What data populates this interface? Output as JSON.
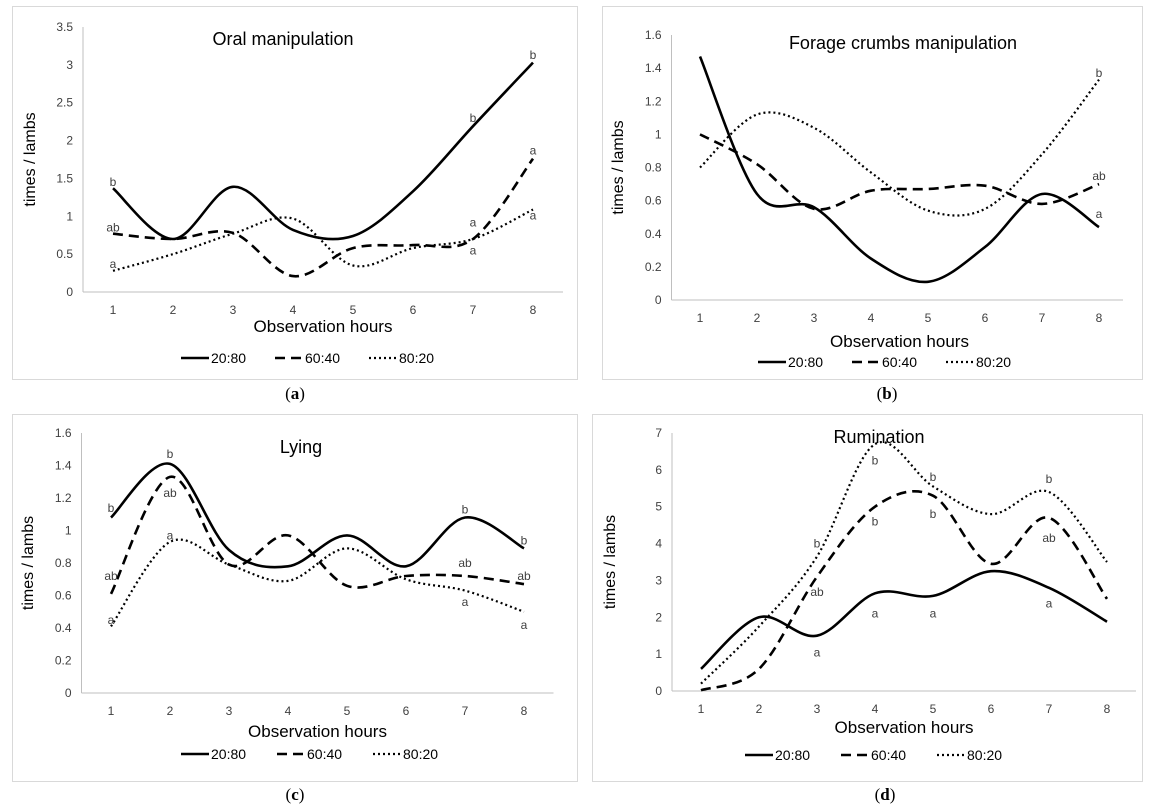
{
  "chart_data": [
    {
      "type": "line",
      "caption_letter": "a",
      "title": "Oral manipulation",
      "xlabel": "Observation hours",
      "ylabel": "times / lambs",
      "x": [
        1,
        2,
        3,
        4,
        5,
        6,
        7,
        8
      ],
      "ylim": [
        0,
        3.5
      ],
      "yticks": [
        "0",
        "0.5",
        "1",
        "1.5",
        "2",
        "2.5",
        "3",
        "3.5"
      ],
      "ytick_values": [
        0,
        0.5,
        1,
        1.5,
        2,
        2.5,
        3,
        3.5
      ],
      "legend_position": "bottom",
      "grid": false,
      "series": [
        {
          "name": "20:80",
          "style": "solid",
          "values": [
            1.37,
            0.7,
            1.39,
            0.82,
            0.74,
            1.33,
            2.19,
            3.03
          ]
        },
        {
          "name": "60:40",
          "style": "dashed",
          "values": [
            0.77,
            0.7,
            0.78,
            0.21,
            0.58,
            0.62,
            0.7,
            1.76
          ]
        },
        {
          "name": "80:20",
          "style": "dotted",
          "values": [
            0.28,
            0.5,
            0.77,
            0.97,
            0.35,
            0.58,
            0.7,
            1.09
          ]
        }
      ],
      "annotations": [
        {
          "text": "b",
          "x": 1,
          "y": 1.45
        },
        {
          "text": "ab",
          "x": 1,
          "y": 0.85
        },
        {
          "text": "a",
          "x": 1,
          "y": 0.37
        },
        {
          "text": "b",
          "x": 7,
          "y": 2.3
        },
        {
          "text": "a",
          "x": 7,
          "y": 0.92
        },
        {
          "text": "a",
          "x": 7,
          "y": 0.55
        },
        {
          "text": "b",
          "x": 8,
          "y": 3.13
        },
        {
          "text": "a",
          "x": 8,
          "y": 1.87
        },
        {
          "text": "a",
          "x": 8,
          "y": 1.01
        }
      ]
    },
    {
      "type": "line",
      "caption_letter": "b",
      "title": "Forage crumbs manipulation",
      "xlabel": "Observation hours",
      "ylabel": "times / lambs",
      "x": [
        1,
        2,
        3,
        4,
        5,
        6,
        7,
        8
      ],
      "ylim": [
        0,
        1.6
      ],
      "yticks": [
        "0",
        "0.2",
        "0.4",
        "0.6",
        "0.8",
        "1",
        "1.2",
        "1.4",
        "1.6"
      ],
      "ytick_values": [
        0,
        0.2,
        0.4,
        0.6,
        0.8,
        1,
        1.2,
        1.4,
        1.6
      ],
      "legend_position": "bottom",
      "grid": false,
      "series": [
        {
          "name": "20:80",
          "style": "solid",
          "values": [
            1.47,
            0.64,
            0.56,
            0.25,
            0.11,
            0.32,
            0.64,
            0.44
          ]
        },
        {
          "name": "60:40",
          "style": "dashed",
          "values": [
            1.0,
            0.82,
            0.55,
            0.66,
            0.67,
            0.69,
            0.58,
            0.7
          ]
        },
        {
          "name": "80:20",
          "style": "dotted",
          "values": [
            0.8,
            1.12,
            1.04,
            0.77,
            0.54,
            0.55,
            0.88,
            1.33
          ]
        }
      ],
      "annotations": [
        {
          "text": "b",
          "x": 8,
          "y": 1.37
        },
        {
          "text": "ab",
          "x": 8,
          "y": 0.75
        },
        {
          "text": "a",
          "x": 8,
          "y": 0.52
        }
      ]
    },
    {
      "type": "line",
      "caption_letter": "c",
      "title": "Lying",
      "xlabel": "Observation hours",
      "ylabel": "times / lambs",
      "x": [
        1,
        2,
        3,
        4,
        5,
        6,
        7,
        8
      ],
      "ylim": [
        0,
        1.6
      ],
      "yticks": [
        "0",
        "0.2",
        "0.4",
        "0.6",
        "0.8",
        "1",
        "1.2",
        "1.4",
        "1.6"
      ],
      "ytick_values": [
        0,
        0.2,
        0.4,
        0.6,
        0.8,
        1,
        1.2,
        1.4,
        1.6
      ],
      "legend_position": "bottom",
      "grid": false,
      "series": [
        {
          "name": "20:80",
          "style": "solid",
          "values": [
            1.08,
            1.41,
            0.88,
            0.78,
            0.97,
            0.78,
            1.08,
            0.89
          ]
        },
        {
          "name": "60:40",
          "style": "dashed",
          "values": [
            0.61,
            1.33,
            0.79,
            0.97,
            0.66,
            0.72,
            0.72,
            0.67
          ]
        },
        {
          "name": "80:20",
          "style": "dotted",
          "values": [
            0.41,
            0.93,
            0.79,
            0.69,
            0.89,
            0.7,
            0.63,
            0.5
          ]
        }
      ],
      "annotations": [
        {
          "text": "b",
          "x": 1,
          "y": 1.14
        },
        {
          "text": "ab",
          "x": 1,
          "y": 0.72
        },
        {
          "text": "a",
          "x": 1,
          "y": 0.45
        },
        {
          "text": "b",
          "x": 2,
          "y": 1.47
        },
        {
          "text": "ab",
          "x": 2,
          "y": 1.23
        },
        {
          "text": "a",
          "x": 2,
          "y": 0.97
        },
        {
          "text": "b",
          "x": 7,
          "y": 1.13
        },
        {
          "text": "ab",
          "x": 7,
          "y": 0.8
        },
        {
          "text": "a",
          "x": 7,
          "y": 0.56
        },
        {
          "text": "b",
          "x": 8,
          "y": 0.94
        },
        {
          "text": "ab",
          "x": 8,
          "y": 0.72
        },
        {
          "text": "a",
          "x": 8,
          "y": 0.42
        }
      ]
    },
    {
      "type": "line",
      "caption_letter": "d",
      "title": "Rumination",
      "xlabel": "Observation hours",
      "ylabel": "times / lambs",
      "x": [
        1,
        2,
        3,
        4,
        5,
        6,
        7,
        8
      ],
      "ylim": [
        0,
        7
      ],
      "yticks": [
        "0",
        "1",
        "2",
        "3",
        "4",
        "5",
        "6",
        "7"
      ],
      "ytick_values": [
        0,
        1,
        2,
        3,
        4,
        5,
        6,
        7
      ],
      "legend_position": "bottom",
      "grid": false,
      "series": [
        {
          "name": "20:80",
          "style": "solid",
          "values": [
            0.6,
            2.0,
            1.5,
            2.65,
            2.58,
            3.25,
            2.8,
            1.88
          ]
        },
        {
          "name": "60:40",
          "style": "dashed",
          "values": [
            0.02,
            0.6,
            3.1,
            5.0,
            5.3,
            3.45,
            4.7,
            2.5
          ]
        },
        {
          "name": "80:20",
          "style": "dotted",
          "values": [
            0.2,
            1.75,
            3.65,
            6.7,
            5.55,
            4.8,
            5.4,
            3.5
          ]
        }
      ],
      "annotations": [
        {
          "text": "a",
          "x": 3,
          "y": 1.05
        },
        {
          "text": "ab",
          "x": 3,
          "y": 2.68
        },
        {
          "text": "b",
          "x": 3,
          "y": 4.0
        },
        {
          "text": "a",
          "x": 4,
          "y": 2.1
        },
        {
          "text": "b",
          "x": 4,
          "y": 4.6
        },
        {
          "text": "b",
          "x": 4,
          "y": 6.25
        },
        {
          "text": "a",
          "x": 5,
          "y": 2.1
        },
        {
          "text": "b",
          "x": 5,
          "y": 4.8
        },
        {
          "text": "b",
          "x": 5,
          "y": 5.8
        },
        {
          "text": "a",
          "x": 7,
          "y": 2.38
        },
        {
          "text": "ab",
          "x": 7,
          "y": 4.15
        },
        {
          "text": "b",
          "x": 7,
          "y": 5.75
        }
      ]
    }
  ]
}
